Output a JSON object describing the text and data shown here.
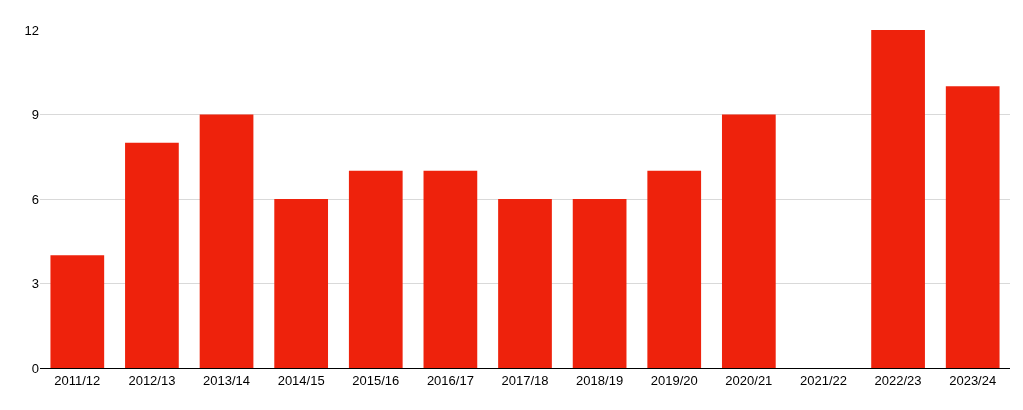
{
  "chart_data": {
    "type": "bar",
    "categories": [
      "2011/12",
      "2012/13",
      "2013/14",
      "2014/15",
      "2015/16",
      "2016/17",
      "2017/18",
      "2018/19",
      "2019/20",
      "2020/21",
      "2021/22",
      "2022/23",
      "2023/24"
    ],
    "values": [
      4,
      8,
      9,
      6,
      7,
      7,
      6,
      6,
      7,
      9,
      0,
      12,
      10
    ],
    "color": "#ee220c",
    "ylim": [
      0,
      12
    ],
    "yticks": [
      0,
      3,
      6,
      9,
      12
    ],
    "grid": "y"
  }
}
